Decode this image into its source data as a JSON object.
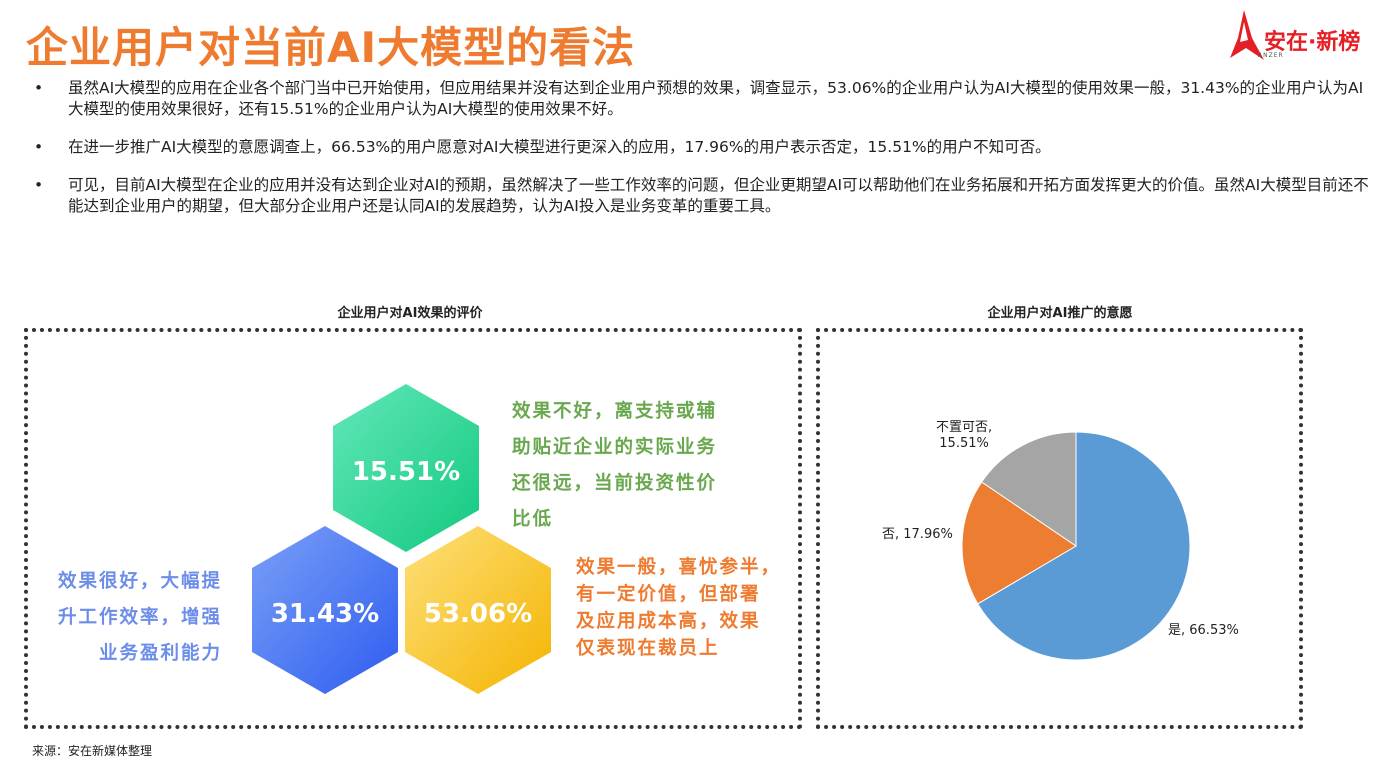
{
  "header": {
    "title": "企业用户对当前AI大模型的看法",
    "logo_text": "安在·新榜",
    "logo_sub": "ANZER"
  },
  "bullets": [
    "虽然AI大模型的应用在企业各个部门当中已开始使用，但应用结果并没有达到企业用户预想的效果，调查显示，53.06%的企业用户认为AI大模型的使用效果一般，31.43%的企业用户认为AI大模型的使用效果很好，还有15.51%的企业用户认为AI大模型的使用效果不好。",
    "在进一步推广AI大模型的意愿调查上，66.53%的用户愿意对AI大模型进行更深入的应用，17.96%的用户表示否定，15.51%的用户不知可否。",
    "可见，目前AI大模型在企业的应用并没有达到企业对AI的预期，虽然解决了一些工作效率的问题，但企业更期望AI可以帮助他们在业务拓展和开拓方面发挥更大的价值。虽然AI大模型目前还不能达到企业用户的期望，但大部分企业用户还是认同AI的发展趋势，认为AI投入是业务变革的重要工具。"
  ],
  "chart_data": [
    {
      "type": "other",
      "title": "企业用户对AI效果的评价",
      "series": [
        {
          "label": "15.51%",
          "value": 15.51,
          "description_lines": [
            "效果不好，离支持或辅",
            "助贴近企业的实际业务",
            "还很远，当前投资性价",
            "比低"
          ],
          "color": "#3ad69a"
        },
        {
          "label": "31.43%",
          "value": 31.43,
          "description_lines": [
            "效果很好，大幅提",
            "升工作效率，增强",
            "业务盈利能力"
          ],
          "color": "#4f78f2"
        },
        {
          "label": "53.06%",
          "value": 53.06,
          "description_lines": [
            "效果一般，喜忧参半，",
            "有一定价值，但部署",
            "及应用成本高，效果",
            "仅表现在裁员上"
          ],
          "color": "#f7c32e"
        }
      ],
      "desc_colors": {
        "bad": "#6aa84f",
        "good": "#6d8ee8",
        "average": "#ee7b2f"
      }
    },
    {
      "type": "pie",
      "title": "企业用户对AI推广的意愿",
      "slices": [
        {
          "name": "是",
          "value": 66.53,
          "label": "是, 66.53%",
          "color": "#5b9bd5"
        },
        {
          "name": "否",
          "value": 17.96,
          "label": "否, 17.96%",
          "color": "#ed7d31"
        },
        {
          "name": "不置可否",
          "value": 15.51,
          "label_lines": [
            "不置可否,",
            "15.51%"
          ],
          "color": "#a5a5a5"
        }
      ]
    }
  ],
  "footer": {
    "source": "来源：安在新媒体整理"
  }
}
